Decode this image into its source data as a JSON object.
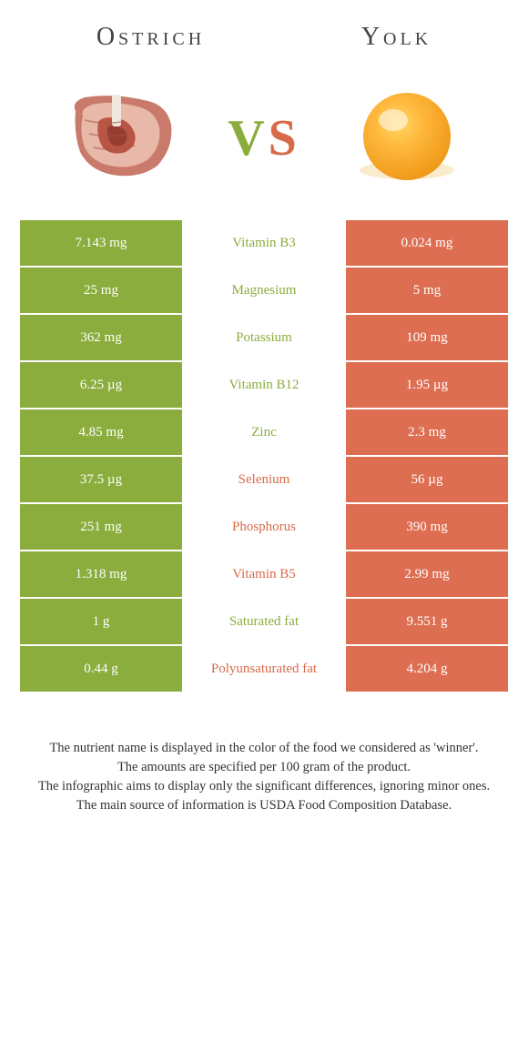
{
  "food_left": {
    "name": "Ostrich"
  },
  "food_right": {
    "name": "Yolk"
  },
  "colors": {
    "left_bg": "#8aad3d",
    "right_bg": "#dd6e51",
    "mid_bg": "#ffffff",
    "left_text": "#ffffff",
    "right_text": "#ffffff",
    "mid_green": "#8aad3d",
    "mid_orange": "#d86a4a"
  },
  "rows": [
    {
      "left": "7.143 mg",
      "label": "Vitamin B3",
      "right": "0.024 mg",
      "winner": "left"
    },
    {
      "left": "25 mg",
      "label": "Magnesium",
      "right": "5 mg",
      "winner": "left"
    },
    {
      "left": "362 mg",
      "label": "Potassium",
      "right": "109 mg",
      "winner": "left"
    },
    {
      "left": "6.25 µg",
      "label": "Vitamin B12",
      "right": "1.95 µg",
      "winner": "left"
    },
    {
      "left": "4.85 mg",
      "label": "Zinc",
      "right": "2.3 mg",
      "winner": "left"
    },
    {
      "left": "37.5 µg",
      "label": "Selenium",
      "right": "56 µg",
      "winner": "right"
    },
    {
      "left": "251 mg",
      "label": "Phosphorus",
      "right": "390 mg",
      "winner": "right"
    },
    {
      "left": "1.318 mg",
      "label": "Vitamin B5",
      "right": "2.99 mg",
      "winner": "right"
    },
    {
      "left": "1 g",
      "label": "Saturated fat",
      "right": "9.551 g",
      "winner": "left"
    },
    {
      "left": "0.44 g",
      "label": "Polyunsaturated fat",
      "right": "4.204 g",
      "winner": "right"
    }
  ],
  "footer": {
    "line1": "The nutrient name is displayed in the color of the food we considered as 'winner'.",
    "line2": "The amounts are specified per 100 gram of the product.",
    "line3": "The infographic aims to display only the significant differences, ignoring minor ones.",
    "line4": "The main source of information is USDA Food Composition Database."
  }
}
